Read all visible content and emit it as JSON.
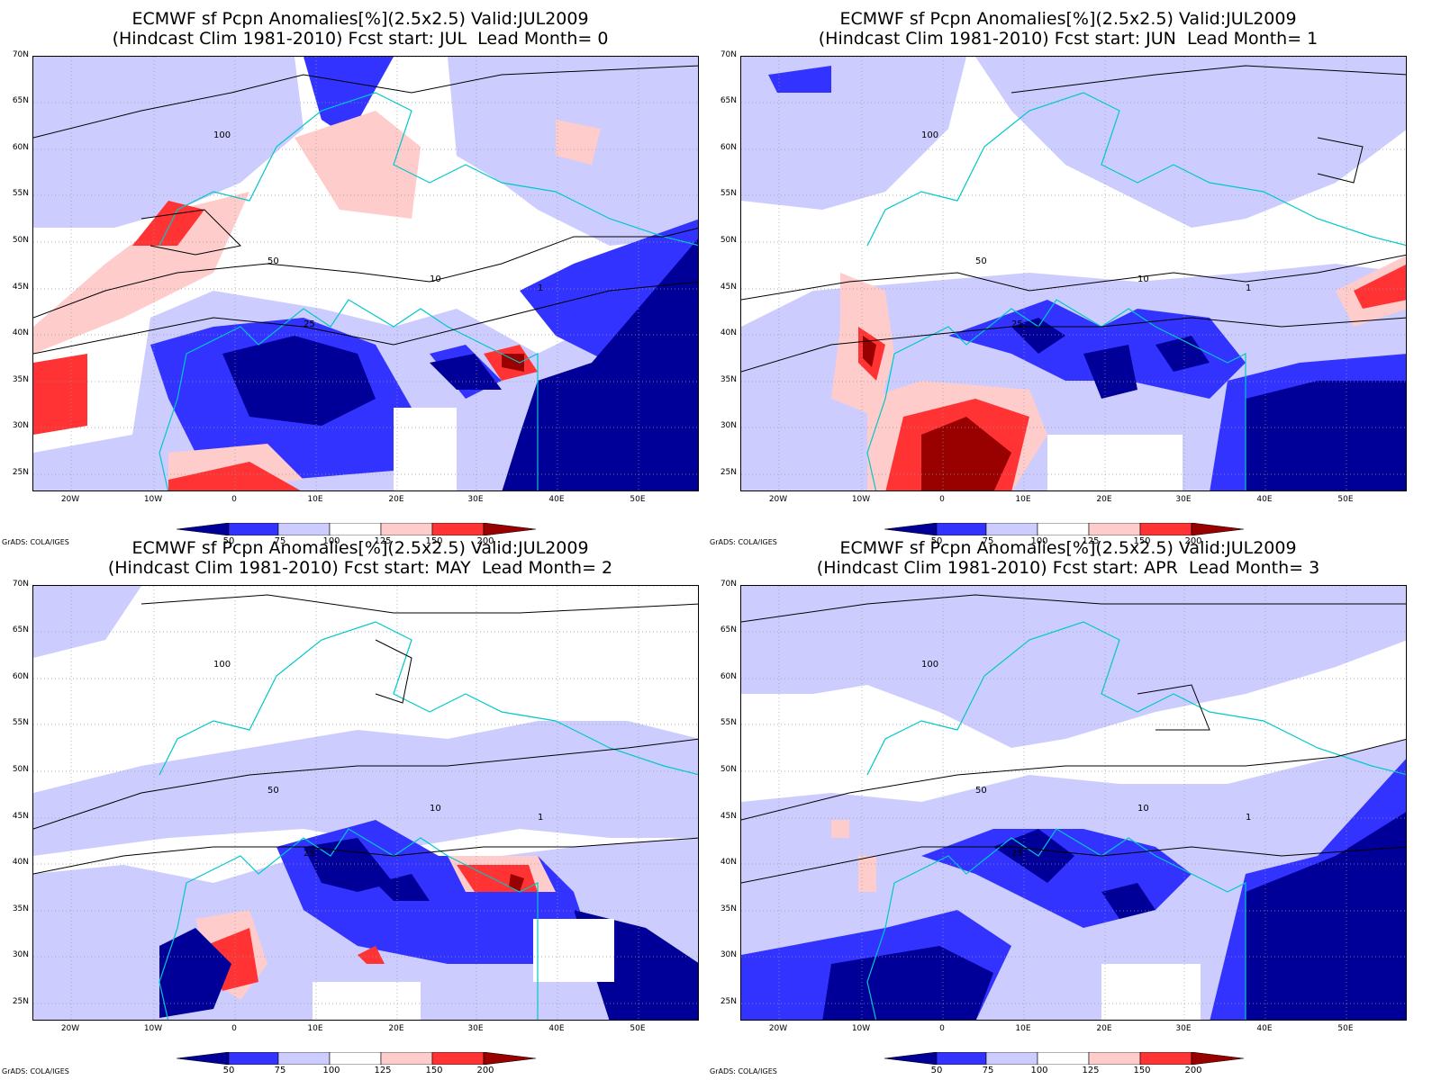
{
  "panels": [
    {
      "title_line1": "ECMWF sf Pcpn Anomalies[%](2.5x2.5) Valid:JUL2009",
      "title_line2": "(Hindcast Clim 1981-2010) Fcst start: JUL  Lead Month= 0"
    },
    {
      "title_line1": "ECMWF sf Pcpn Anomalies[%](2.5x2.5) Valid:JUL2009",
      "title_line2": "(Hindcast Clim 1981-2010) Fcst start: JUN  Lead Month= 1"
    },
    {
      "title_line1": "ECMWF sf Pcpn Anomalies[%](2.5x2.5) Valid:JUL2009",
      "title_line2": "(Hindcast Clim 1981-2010) Fcst start: MAY  Lead Month= 2"
    },
    {
      "title_line1": "ECMWF sf Pcpn Anomalies[%](2.5x2.5) Valid:JUL2009",
      "title_line2": "(Hindcast Clim 1981-2010) Fcst start: APR  Lead Month= 3"
    }
  ],
  "lat_labels": [
    "70N",
    "65N",
    "60N",
    "55N",
    "50N",
    "45N",
    "40N",
    "35N",
    "30N",
    "25N"
  ],
  "lon_labels": [
    "20W",
    "10W",
    "0",
    "10E",
    "20E",
    "30E",
    "40E",
    "50E"
  ],
  "colorbar": {
    "labels": [
      "50",
      "75",
      "100",
      "125",
      "150",
      "200"
    ],
    "colors": [
      "#000099",
      "#3333ff",
      "#ccccff",
      "#ffffff",
      "#ffcccc",
      "#ff3333",
      "#990000"
    ]
  },
  "credit": "GrADS: COLA/IGES",
  "contour_labels": [
    "100",
    "50",
    "25",
    "10",
    "1"
  ]
}
